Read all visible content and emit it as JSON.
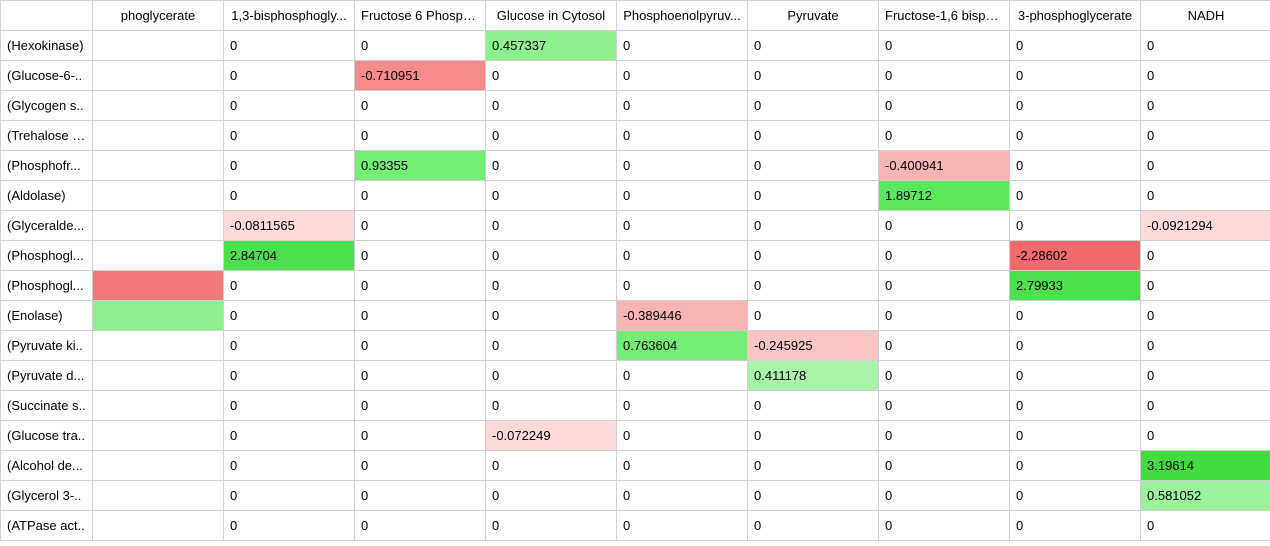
{
  "table": {
    "type": "heatmap-table",
    "background_color": "#ffffff",
    "grid_color": "#d0d0d0",
    "font_family": "Segoe UI",
    "font_size_pt": 10,
    "neutral_bg": "#ffffff",
    "columns": [
      "phoglycerate",
      "1,3-bisphosphogly...",
      "Fructose 6 Phosph...",
      "Glucose in Cytosol",
      "Phosphoenolpyruv...",
      "Pyruvate",
      "Fructose-1,6 bisph...",
      "3-phosphoglycerate",
      "NADH"
    ],
    "rows": [
      {
        "label": "(Hexokinase)",
        "cells": [
          {
            "v": "",
            "bg": "#ffffff"
          },
          {
            "v": "0",
            "bg": "#ffffff"
          },
          {
            "v": "0",
            "bg": "#ffffff"
          },
          {
            "v": "0.457337",
            "bg": "#8ef08e"
          },
          {
            "v": "0",
            "bg": "#ffffff"
          },
          {
            "v": "0",
            "bg": "#ffffff"
          },
          {
            "v": "0",
            "bg": "#ffffff"
          },
          {
            "v": "0",
            "bg": "#ffffff"
          },
          {
            "v": "0",
            "bg": "#ffffff"
          }
        ]
      },
      {
        "label": "(Glucose-6-..",
        "cells": [
          {
            "v": "",
            "bg": "#ffffff"
          },
          {
            "v": "0",
            "bg": "#ffffff"
          },
          {
            "v": "-0.710951",
            "bg": "#f58b8b"
          },
          {
            "v": "0",
            "bg": "#ffffff"
          },
          {
            "v": "0",
            "bg": "#ffffff"
          },
          {
            "v": "0",
            "bg": "#ffffff"
          },
          {
            "v": "0",
            "bg": "#ffffff"
          },
          {
            "v": "0",
            "bg": "#ffffff"
          },
          {
            "v": "0",
            "bg": "#ffffff"
          }
        ]
      },
      {
        "label": "(Glycogen s..",
        "cells": [
          {
            "v": "",
            "bg": "#ffffff"
          },
          {
            "v": "0",
            "bg": "#ffffff"
          },
          {
            "v": "0",
            "bg": "#ffffff"
          },
          {
            "v": "0",
            "bg": "#ffffff"
          },
          {
            "v": "0",
            "bg": "#ffffff"
          },
          {
            "v": "0",
            "bg": "#ffffff"
          },
          {
            "v": "0",
            "bg": "#ffffff"
          },
          {
            "v": "0",
            "bg": "#ffffff"
          },
          {
            "v": "0",
            "bg": "#ffffff"
          }
        ]
      },
      {
        "label": "(Trehalose 6..",
        "cells": [
          {
            "v": "",
            "bg": "#ffffff"
          },
          {
            "v": "0",
            "bg": "#ffffff"
          },
          {
            "v": "0",
            "bg": "#ffffff"
          },
          {
            "v": "0",
            "bg": "#ffffff"
          },
          {
            "v": "0",
            "bg": "#ffffff"
          },
          {
            "v": "0",
            "bg": "#ffffff"
          },
          {
            "v": "0",
            "bg": "#ffffff"
          },
          {
            "v": "0",
            "bg": "#ffffff"
          },
          {
            "v": "0",
            "bg": "#ffffff"
          }
        ]
      },
      {
        "label": "(Phosphofr...",
        "cells": [
          {
            "v": "",
            "bg": "#ffffff"
          },
          {
            "v": "0",
            "bg": "#ffffff"
          },
          {
            "v": "0.93355",
            "bg": "#73ed73"
          },
          {
            "v": "0",
            "bg": "#ffffff"
          },
          {
            "v": "0",
            "bg": "#ffffff"
          },
          {
            "v": "0",
            "bg": "#ffffff"
          },
          {
            "v": "-0.400941",
            "bg": "#f9b4b4"
          },
          {
            "v": "0",
            "bg": "#ffffff"
          },
          {
            "v": "0",
            "bg": "#ffffff"
          }
        ]
      },
      {
        "label": "(Aldolase)",
        "cells": [
          {
            "v": "",
            "bg": "#ffffff"
          },
          {
            "v": "0",
            "bg": "#ffffff"
          },
          {
            "v": "0",
            "bg": "#ffffff"
          },
          {
            "v": "0",
            "bg": "#ffffff"
          },
          {
            "v": "0",
            "bg": "#ffffff"
          },
          {
            "v": "0",
            "bg": "#ffffff"
          },
          {
            "v": "1.89712",
            "bg": "#5ce85c"
          },
          {
            "v": "0",
            "bg": "#ffffff"
          },
          {
            "v": "0",
            "bg": "#ffffff"
          }
        ]
      },
      {
        "label": "(Glyceralde...",
        "cells": [
          {
            "v": "",
            "bg": "#ffffff"
          },
          {
            "v": "-0.0811565",
            "bg": "#fcdada"
          },
          {
            "v": "0",
            "bg": "#ffffff"
          },
          {
            "v": "0",
            "bg": "#ffffff"
          },
          {
            "v": "0",
            "bg": "#ffffff"
          },
          {
            "v": "0",
            "bg": "#ffffff"
          },
          {
            "v": "0",
            "bg": "#ffffff"
          },
          {
            "v": "0",
            "bg": "#ffffff"
          },
          {
            "v": "-0.0921294",
            "bg": "#fcdada"
          }
        ]
      },
      {
        "label": "(Phosphogl...",
        "cells": [
          {
            "v": "",
            "bg": "#ffffff"
          },
          {
            "v": "2.84704",
            "bg": "#4ce04c"
          },
          {
            "v": "0",
            "bg": "#ffffff"
          },
          {
            "v": "0",
            "bg": "#ffffff"
          },
          {
            "v": "0",
            "bg": "#ffffff"
          },
          {
            "v": "0",
            "bg": "#ffffff"
          },
          {
            "v": "0",
            "bg": "#ffffff"
          },
          {
            "v": "-2.28602",
            "bg": "#f06a6a"
          },
          {
            "v": "0",
            "bg": "#ffffff"
          }
        ]
      },
      {
        "label": "(Phosphogl...",
        "cells": [
          {
            "v": "",
            "bg": "#f27a7a"
          },
          {
            "v": "0",
            "bg": "#ffffff"
          },
          {
            "v": "0",
            "bg": "#ffffff"
          },
          {
            "v": "0",
            "bg": "#ffffff"
          },
          {
            "v": "0",
            "bg": "#ffffff"
          },
          {
            "v": "0",
            "bg": "#ffffff"
          },
          {
            "v": "0",
            "bg": "#ffffff"
          },
          {
            "v": "2.79933",
            "bg": "#4ce04c"
          },
          {
            "v": "0",
            "bg": "#ffffff"
          }
        ]
      },
      {
        "label": "(Enolase)",
        "cells": [
          {
            "v": "",
            "bg": "#8ef08e"
          },
          {
            "v": "0",
            "bg": "#ffffff"
          },
          {
            "v": "0",
            "bg": "#ffffff"
          },
          {
            "v": "0",
            "bg": "#ffffff"
          },
          {
            "v": "-0.389446",
            "bg": "#f9b4b4"
          },
          {
            "v": "0",
            "bg": "#ffffff"
          },
          {
            "v": "0",
            "bg": "#ffffff"
          },
          {
            "v": "0",
            "bg": "#ffffff"
          },
          {
            "v": "0",
            "bg": "#ffffff"
          }
        ]
      },
      {
        "label": "(Pyruvate ki..",
        "cells": [
          {
            "v": "",
            "bg": "#ffffff"
          },
          {
            "v": "0",
            "bg": "#ffffff"
          },
          {
            "v": "0",
            "bg": "#ffffff"
          },
          {
            "v": "0",
            "bg": "#ffffff"
          },
          {
            "v": "0.763604",
            "bg": "#73ed73"
          },
          {
            "v": "-0.245925",
            "bg": "#fac4c4"
          },
          {
            "v": "0",
            "bg": "#ffffff"
          },
          {
            "v": "0",
            "bg": "#ffffff"
          },
          {
            "v": "0",
            "bg": "#ffffff"
          }
        ]
      },
      {
        "label": "(Pyruvate d...",
        "cells": [
          {
            "v": "",
            "bg": "#ffffff"
          },
          {
            "v": "0",
            "bg": "#ffffff"
          },
          {
            "v": "0",
            "bg": "#ffffff"
          },
          {
            "v": "0",
            "bg": "#ffffff"
          },
          {
            "v": "0",
            "bg": "#ffffff"
          },
          {
            "v": "0.411178",
            "bg": "#a7f3a7"
          },
          {
            "v": "0",
            "bg": "#ffffff"
          },
          {
            "v": "0",
            "bg": "#ffffff"
          },
          {
            "v": "0",
            "bg": "#ffffff"
          }
        ]
      },
      {
        "label": "(Succinate s..",
        "cells": [
          {
            "v": "",
            "bg": "#ffffff"
          },
          {
            "v": "0",
            "bg": "#ffffff"
          },
          {
            "v": "0",
            "bg": "#ffffff"
          },
          {
            "v": "0",
            "bg": "#ffffff"
          },
          {
            "v": "0",
            "bg": "#ffffff"
          },
          {
            "v": "0",
            "bg": "#ffffff"
          },
          {
            "v": "0",
            "bg": "#ffffff"
          },
          {
            "v": "0",
            "bg": "#ffffff"
          },
          {
            "v": "0",
            "bg": "#ffffff"
          }
        ]
      },
      {
        "label": "(Glucose tra..",
        "cells": [
          {
            "v": "",
            "bg": "#ffffff"
          },
          {
            "v": "0",
            "bg": "#ffffff"
          },
          {
            "v": "0",
            "bg": "#ffffff"
          },
          {
            "v": "-0.072249",
            "bg": "#fcdada"
          },
          {
            "v": "0",
            "bg": "#ffffff"
          },
          {
            "v": "0",
            "bg": "#ffffff"
          },
          {
            "v": "0",
            "bg": "#ffffff"
          },
          {
            "v": "0",
            "bg": "#ffffff"
          },
          {
            "v": "0",
            "bg": "#ffffff"
          }
        ]
      },
      {
        "label": "(Alcohol de...",
        "cells": [
          {
            "v": "",
            "bg": "#ffffff"
          },
          {
            "v": "0",
            "bg": "#ffffff"
          },
          {
            "v": "0",
            "bg": "#ffffff"
          },
          {
            "v": "0",
            "bg": "#ffffff"
          },
          {
            "v": "0",
            "bg": "#ffffff"
          },
          {
            "v": "0",
            "bg": "#ffffff"
          },
          {
            "v": "0",
            "bg": "#ffffff"
          },
          {
            "v": "0",
            "bg": "#ffffff"
          },
          {
            "v": "3.19614",
            "bg": "#40dc40"
          }
        ]
      },
      {
        "label": "(Glycerol 3-..",
        "cells": [
          {
            "v": "",
            "bg": "#ffffff"
          },
          {
            "v": "0",
            "bg": "#ffffff"
          },
          {
            "v": "0",
            "bg": "#ffffff"
          },
          {
            "v": "0",
            "bg": "#ffffff"
          },
          {
            "v": "0",
            "bg": "#ffffff"
          },
          {
            "v": "0",
            "bg": "#ffffff"
          },
          {
            "v": "0",
            "bg": "#ffffff"
          },
          {
            "v": "0",
            "bg": "#ffffff"
          },
          {
            "v": "0.581052",
            "bg": "#9bf29b"
          }
        ]
      },
      {
        "label": "(ATPase act..",
        "cells": [
          {
            "v": "",
            "bg": "#ffffff"
          },
          {
            "v": "0",
            "bg": "#ffffff"
          },
          {
            "v": "0",
            "bg": "#ffffff"
          },
          {
            "v": "0",
            "bg": "#ffffff"
          },
          {
            "v": "0",
            "bg": "#ffffff"
          },
          {
            "v": "0",
            "bg": "#ffffff"
          },
          {
            "v": "0",
            "bg": "#ffffff"
          },
          {
            "v": "0",
            "bg": "#ffffff"
          },
          {
            "v": "0",
            "bg": "#ffffff"
          }
        ]
      }
    ]
  }
}
